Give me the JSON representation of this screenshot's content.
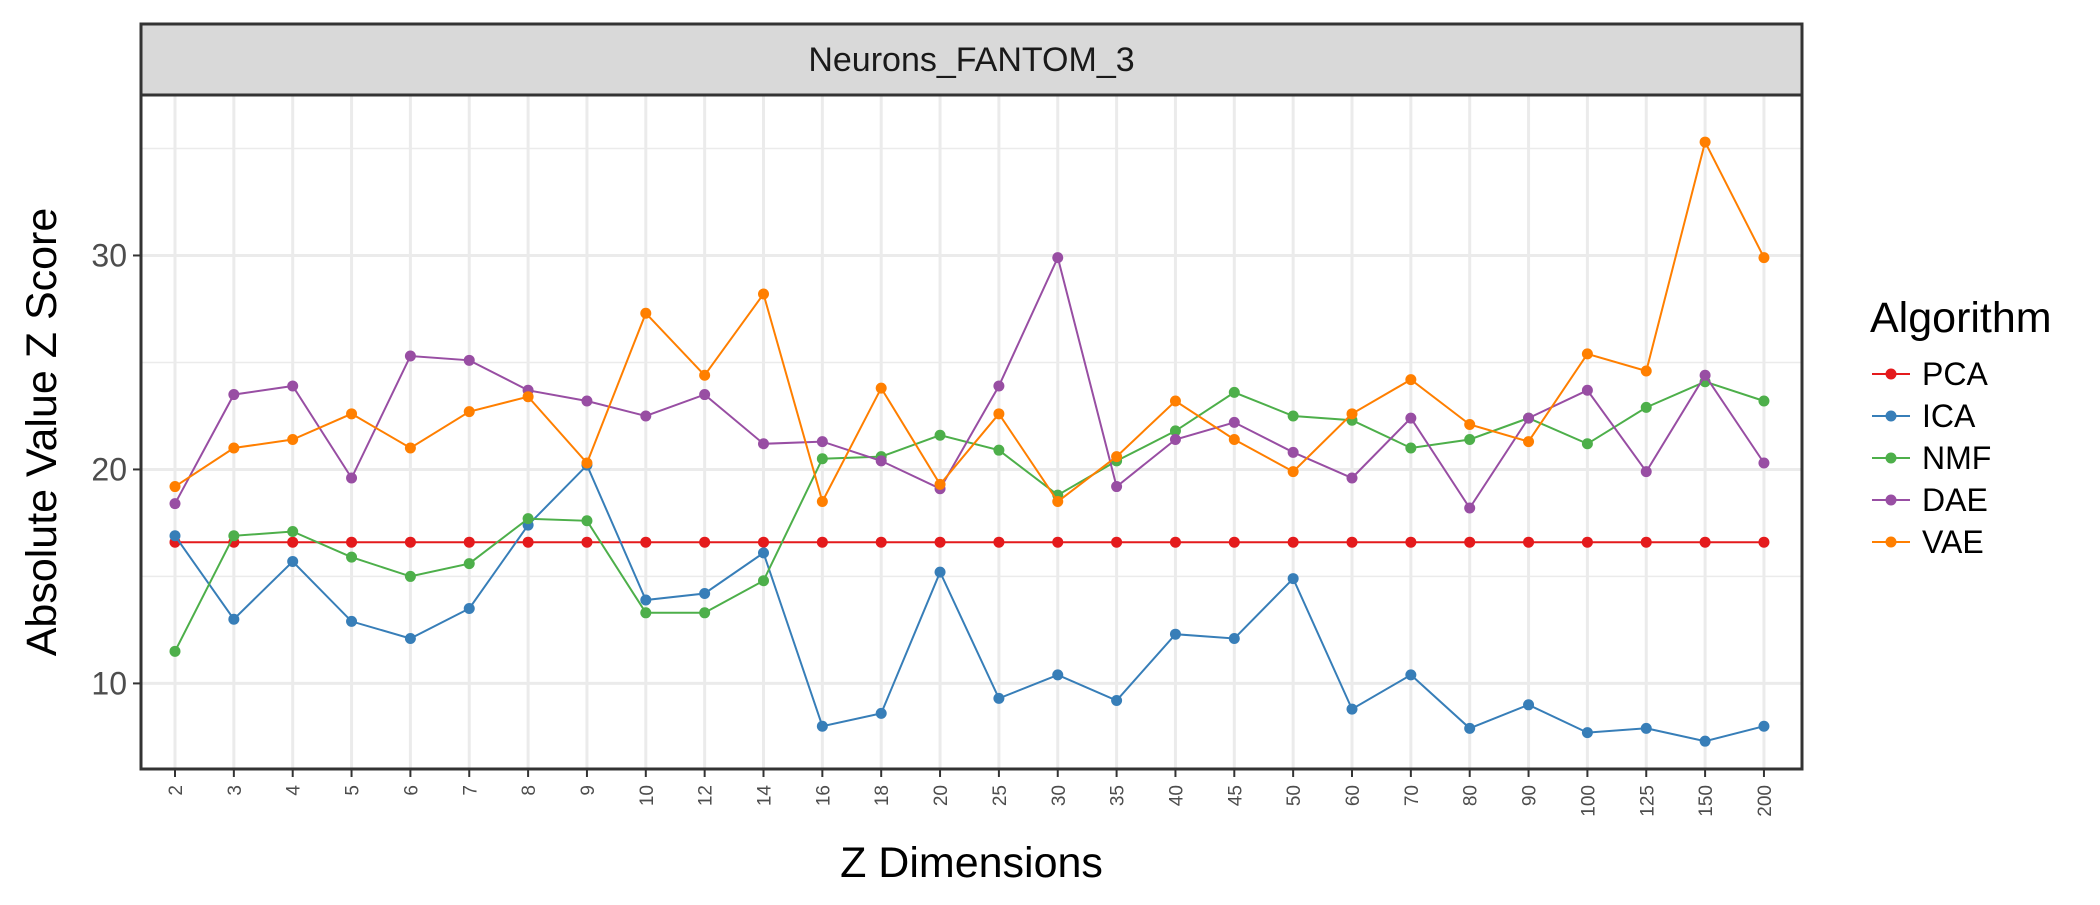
{
  "chart_data": {
    "type": "line",
    "facet_label": "Neurons_FANTOM_3",
    "xlabel": "Z Dimensions",
    "ylabel": "Absolute Value Z Score",
    "categories": [
      "2",
      "3",
      "4",
      "5",
      "6",
      "7",
      "8",
      "9",
      "10",
      "12",
      "14",
      "16",
      "18",
      "20",
      "25",
      "30",
      "35",
      "40",
      "45",
      "50",
      "60",
      "70",
      "80",
      "90",
      "100",
      "125",
      "150",
      "200"
    ],
    "ylim": [
      6,
      37.5
    ],
    "yticks": [
      10,
      20,
      30
    ],
    "grid": true,
    "legend": {
      "title": "Algorithm",
      "position": "right"
    },
    "series": [
      {
        "name": "PCA",
        "color": "#E41A1C",
        "values": [
          16.6,
          16.6,
          16.6,
          16.6,
          16.6,
          16.6,
          16.6,
          16.6,
          16.6,
          16.6,
          16.6,
          16.6,
          16.6,
          16.6,
          16.6,
          16.6,
          16.6,
          16.6,
          16.6,
          16.6,
          16.6,
          16.6,
          16.6,
          16.6,
          16.6,
          16.6,
          16.6,
          16.6
        ]
      },
      {
        "name": "ICA",
        "color": "#377EB8",
        "values": [
          16.9,
          13.0,
          15.7,
          12.9,
          12.1,
          13.5,
          17.4,
          20.2,
          13.9,
          14.2,
          16.1,
          8.0,
          8.6,
          15.2,
          9.3,
          10.4,
          9.2,
          12.3,
          12.1,
          14.9,
          8.8,
          10.4,
          7.9,
          9.0,
          7.7,
          7.9,
          7.3,
          8.0
        ]
      },
      {
        "name": "NMF",
        "color": "#4DAF4A",
        "values": [
          11.5,
          16.9,
          17.1,
          15.9,
          15.0,
          15.6,
          17.7,
          17.6,
          13.3,
          13.3,
          14.8,
          20.5,
          20.6,
          21.6,
          20.9,
          18.8,
          20.4,
          21.8,
          23.6,
          22.5,
          22.3,
          21.0,
          21.4,
          22.4,
          21.2,
          22.9,
          24.1,
          23.2
        ]
      },
      {
        "name": "DAE",
        "color": "#984EA3",
        "values": [
          18.4,
          23.5,
          23.9,
          19.6,
          25.3,
          25.1,
          23.7,
          23.2,
          22.5,
          23.5,
          21.2,
          21.3,
          20.4,
          19.1,
          23.9,
          29.9,
          19.2,
          21.4,
          22.2,
          20.8,
          19.6,
          22.4,
          18.2,
          22.4,
          23.7,
          19.9,
          24.4,
          20.3
        ]
      },
      {
        "name": "VAE",
        "color": "#FF7F00",
        "values": [
          19.2,
          21.0,
          21.4,
          22.6,
          21.0,
          22.7,
          23.4,
          20.3,
          27.3,
          24.4,
          28.2,
          18.5,
          23.8,
          19.3,
          22.6,
          18.5,
          20.6,
          23.2,
          21.4,
          19.9,
          22.6,
          24.2,
          22.1,
          21.3,
          25.4,
          24.6,
          35.3,
          29.9
        ]
      }
    ]
  }
}
